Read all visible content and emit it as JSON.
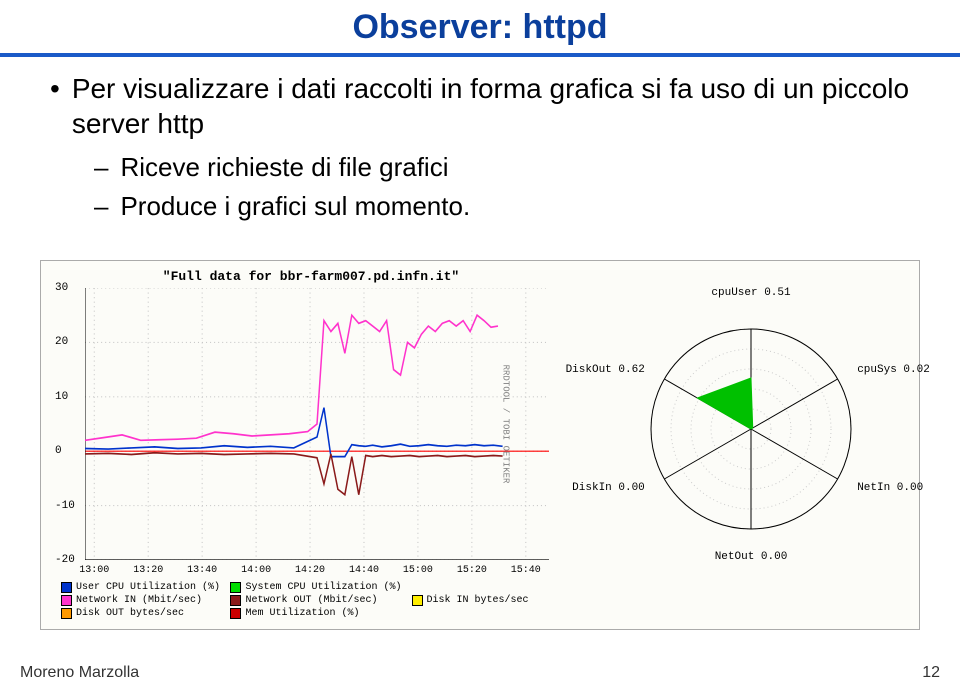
{
  "title": "Observer: httpd",
  "bullets": {
    "main": "Per visualizzare i dati raccolti in forma grafica si fa uso di un piccolo server http",
    "sub": [
      "Riceve richieste di file grafici",
      "Produce i grafici sul momento."
    ]
  },
  "footer": {
    "author": "Moreno Marzolla",
    "page": "12"
  },
  "linechart": {
    "title": "\"Full data for bbr-farm007.pd.infn.it\"",
    "side_label": "RRDTOOL / TOBI OETIKER",
    "ylim": [
      -20,
      30
    ],
    "yticks": [
      -20,
      -10,
      0,
      10,
      20,
      30
    ],
    "xticks": [
      "13:00",
      "13:20",
      "13:40",
      "14:00",
      "14:20",
      "14:40",
      "15:00",
      "15:20",
      "15:40"
    ],
    "background": "#fcfcf8",
    "grid_color": "#c8c8c8",
    "axis_color": "#000000",
    "ref_line": {
      "y": 0,
      "color": "#ff0000"
    },
    "series": [
      {
        "name": "Network IN (Mbit/sec)",
        "color": "#ff33cc",
        "width": 1.5,
        "points": [
          [
            0,
            2
          ],
          [
            0.04,
            2.5
          ],
          [
            0.08,
            3
          ],
          [
            0.12,
            2
          ],
          [
            0.16,
            2.1
          ],
          [
            0.2,
            2.2
          ],
          [
            0.24,
            2.4
          ],
          [
            0.28,
            3.5
          ],
          [
            0.32,
            3.2
          ],
          [
            0.36,
            2.8
          ],
          [
            0.4,
            3.0
          ],
          [
            0.44,
            3.2
          ],
          [
            0.48,
            3.6
          ],
          [
            0.5,
            5
          ],
          [
            0.515,
            24
          ],
          [
            0.53,
            22
          ],
          [
            0.545,
            23.5
          ],
          [
            0.56,
            18
          ],
          [
            0.575,
            25
          ],
          [
            0.59,
            23.5
          ],
          [
            0.605,
            24
          ],
          [
            0.62,
            23
          ],
          [
            0.635,
            22
          ],
          [
            0.65,
            24
          ],
          [
            0.665,
            15
          ],
          [
            0.68,
            14
          ],
          [
            0.695,
            20
          ],
          [
            0.71,
            19
          ],
          [
            0.725,
            21.5
          ],
          [
            0.74,
            23
          ],
          [
            0.755,
            22
          ],
          [
            0.77,
            23.5
          ],
          [
            0.785,
            24
          ],
          [
            0.8,
            23
          ],
          [
            0.815,
            24
          ],
          [
            0.83,
            22
          ],
          [
            0.845,
            25
          ],
          [
            0.86,
            24
          ],
          [
            0.875,
            22.8
          ],
          [
            0.89,
            23
          ]
        ]
      },
      {
        "name": "User CPU Utilization (%)",
        "color": "#0033cc",
        "width": 1.5,
        "points": [
          [
            0,
            0.5
          ],
          [
            0.05,
            0.4
          ],
          [
            0.1,
            0.6
          ],
          [
            0.15,
            0.8
          ],
          [
            0.2,
            0.5
          ],
          [
            0.25,
            0.6
          ],
          [
            0.3,
            1.0
          ],
          [
            0.35,
            0.7
          ],
          [
            0.4,
            0.9
          ],
          [
            0.45,
            0.6
          ],
          [
            0.5,
            2.6
          ],
          [
            0.515,
            8
          ],
          [
            0.53,
            -1
          ],
          [
            0.545,
            -1
          ],
          [
            0.56,
            -1
          ],
          [
            0.575,
            1.2
          ],
          [
            0.59,
            1.0
          ],
          [
            0.605,
            0.9
          ],
          [
            0.62,
            1.1
          ],
          [
            0.64,
            0.8
          ],
          [
            0.66,
            1.0
          ],
          [
            0.68,
            1.3
          ],
          [
            0.7,
            0.9
          ],
          [
            0.72,
            1.0
          ],
          [
            0.74,
            1.2
          ],
          [
            0.76,
            1.0
          ],
          [
            0.78,
            0.9
          ],
          [
            0.8,
            1.1
          ],
          [
            0.82,
            1.0
          ],
          [
            0.84,
            1.2
          ],
          [
            0.86,
            1.0
          ],
          [
            0.88,
            1.1
          ],
          [
            0.9,
            0.9
          ]
        ]
      },
      {
        "name": "Network OUT (Mbit/sec)",
        "color": "#8a1a1a",
        "width": 1.5,
        "points": [
          [
            0,
            -0.5
          ],
          [
            0.05,
            -0.4
          ],
          [
            0.1,
            -0.6
          ],
          [
            0.15,
            -0.3
          ],
          [
            0.2,
            -0.5
          ],
          [
            0.25,
            -0.4
          ],
          [
            0.3,
            -0.6
          ],
          [
            0.35,
            -0.5
          ],
          [
            0.4,
            -0.4
          ],
          [
            0.45,
            -0.5
          ],
          [
            0.5,
            -1.2
          ],
          [
            0.515,
            -6
          ],
          [
            0.53,
            -0.5
          ],
          [
            0.545,
            -7
          ],
          [
            0.56,
            -8
          ],
          [
            0.575,
            -1.0
          ],
          [
            0.59,
            -8
          ],
          [
            0.605,
            -0.8
          ],
          [
            0.62,
            -1.0
          ],
          [
            0.64,
            -0.8
          ],
          [
            0.66,
            -1.0
          ],
          [
            0.68,
            -0.9
          ],
          [
            0.7,
            -0.8
          ],
          [
            0.72,
            -1.0
          ],
          [
            0.74,
            -0.9
          ],
          [
            0.76,
            -0.8
          ],
          [
            0.78,
            -1.0
          ],
          [
            0.8,
            -0.9
          ],
          [
            0.82,
            -0.8
          ],
          [
            0.84,
            -1.0
          ],
          [
            0.86,
            -0.9
          ],
          [
            0.88,
            -0.8
          ],
          [
            0.9,
            -0.9
          ]
        ]
      }
    ],
    "legend": [
      {
        "label": "User CPU Utilization (%)",
        "color": "#0033cc"
      },
      {
        "label": "System CPU Utilization (%)",
        "color": "#00dd00"
      },
      {
        "label": "",
        "color": ""
      },
      {
        "label": "Network IN (Mbit/sec)",
        "color": "#ff33cc"
      },
      {
        "label": "Network OUT (Mbit/sec)",
        "color": "#8a1a1a"
      },
      {
        "label": "Disk IN bytes/sec",
        "color": "#ffee00"
      },
      {
        "label": "Disk OUT bytes/sec",
        "color": "#ff9900"
      },
      {
        "label": "Mem Utilization (%)",
        "color": "#cc0000"
      },
      {
        "label": "",
        "color": ""
      }
    ]
  },
  "radar": {
    "rings": 5,
    "ring_color": "#cccccc",
    "axis_color": "#000000",
    "fill_color": "#00c000",
    "axes": [
      {
        "label": "cpuUser 0.51",
        "angle_deg": -90,
        "value": 0.51,
        "label_pos": "top"
      },
      {
        "label": "cpuSys 0.02",
        "angle_deg": -30,
        "value": 0.02,
        "label_pos": "right"
      },
      {
        "label": "NetIn 0.00",
        "angle_deg": 30,
        "value": 0.0,
        "label_pos": "right"
      },
      {
        "label": "NetOut 0.00",
        "angle_deg": 90,
        "value": 0.0,
        "label_pos": "bottom"
      },
      {
        "label": "DiskIn 0.00",
        "angle_deg": 150,
        "value": 0.0,
        "label_pos": "left"
      },
      {
        "label": "DiskOut 0.62",
        "angle_deg": 210,
        "value": 0.62,
        "label_pos": "left"
      }
    ]
  }
}
